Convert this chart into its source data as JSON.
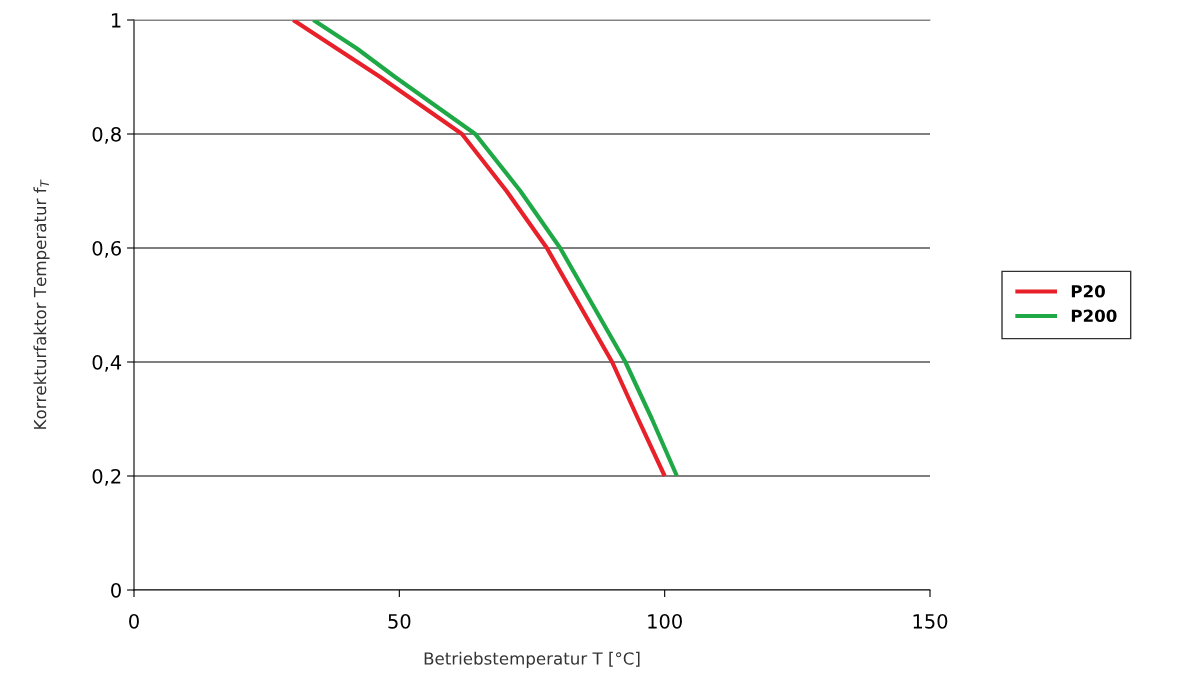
{
  "chart_data": {
    "type": "line",
    "xlabel": "Betriebstemperatur T [°C]",
    "ylabel": "Korrekturfaktor Temperatur f$_{T}$",
    "xlim": [
      0,
      150
    ],
    "xticks": [
      0,
      50,
      100,
      150
    ],
    "ylim": [
      0,
      1
    ],
    "yticks": [
      0,
      {
        "value": 0.2,
        "label": "0,2"
      },
      {
        "value": 0.4,
        "label": "0,4"
      },
      {
        "value": 0.6,
        "label": "0,6"
      },
      {
        "value": 0.8,
        "label": "0,8"
      },
      1
    ],
    "grid": "y",
    "legend": "right",
    "marker": "none",
    "line_style": "solid",
    "series": [
      {
        "name": "P20",
        "color": "#e8202a",
        "x": [
          30,
          38.2,
          46.4,
          61.8,
          70.2,
          77.8,
          90.1,
          95.0,
          100
        ],
        "values": [
          1,
          0.95,
          0.9,
          0.8,
          0.7,
          0.6,
          0.4,
          0.3,
          0.2
        ]
      },
      {
        "name": "P200",
        "color": "#1fa846",
        "x": [
          33.8,
          42.0,
          49.2,
          64.3,
          72.8,
          80.3,
          92.6,
          97.6,
          102.3
        ],
        "values": [
          1,
          0.95,
          0.9,
          0.8,
          0.7,
          0.6,
          0.4,
          0.3,
          0.2
        ]
      }
    ]
  }
}
